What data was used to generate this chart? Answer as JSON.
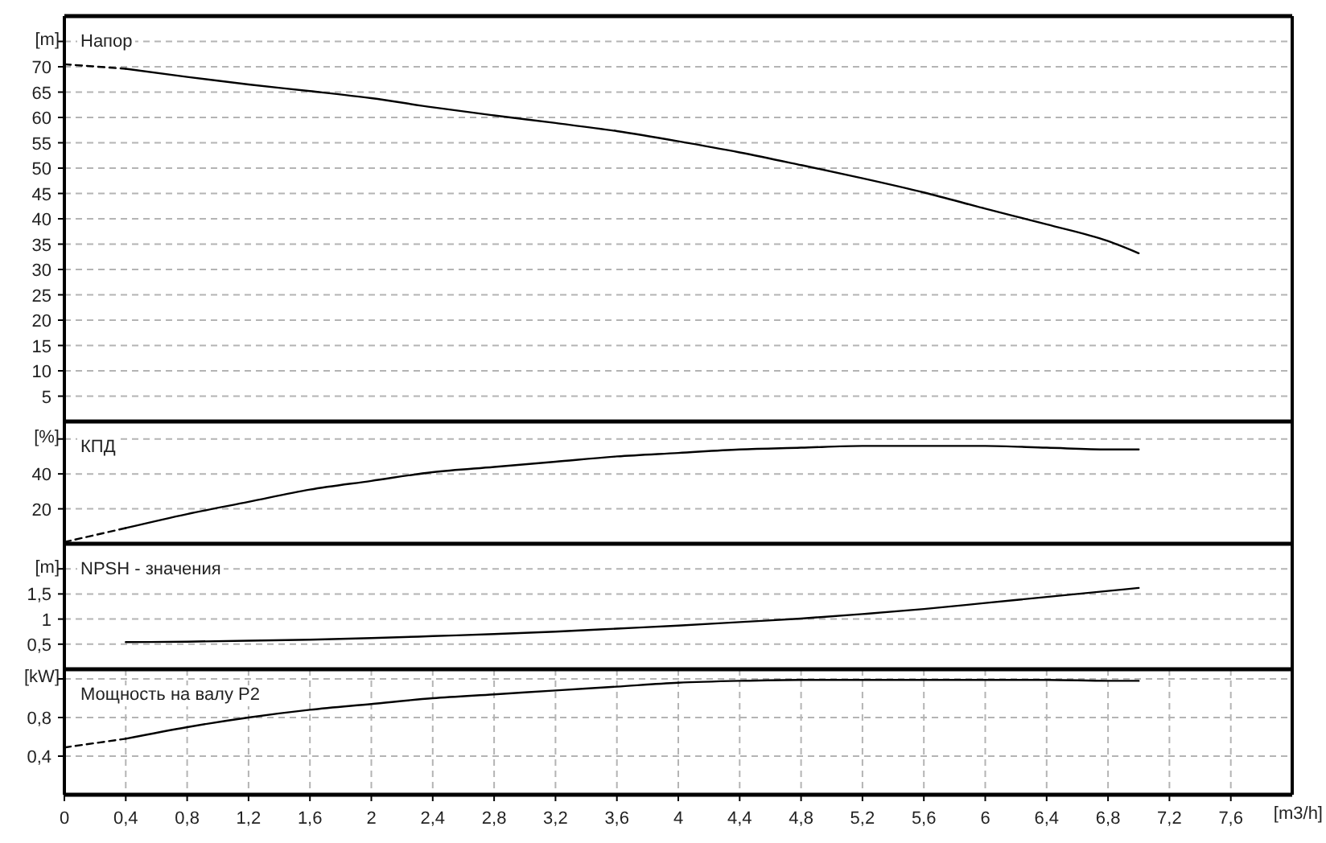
{
  "chart_data": [
    {
      "type": "line",
      "title": "Напор",
      "ylabel": "[m]",
      "xlim": [
        0,
        8
      ],
      "xticks": [
        0,
        0.4,
        0.8,
        1.2,
        1.6,
        2,
        2.4,
        2.8,
        3.2,
        3.6,
        4,
        4.4,
        4.8,
        5.2,
        5.6,
        6,
        6.4,
        6.8,
        7.2,
        7.6
      ],
      "ylim": [
        0,
        80
      ],
      "yticks": [
        5,
        10,
        15,
        20,
        25,
        30,
        35,
        40,
        45,
        50,
        55,
        60,
        65,
        70,
        {
          "value": 75,
          "label": null
        }
      ],
      "grid": true,
      "tick_labels": "y",
      "marker": "none",
      "line_style": "solid",
      "series": [
        {
          "color": "#000000",
          "x": [
            0.4,
            0.8,
            1.2,
            1.6,
            2.0,
            2.4,
            2.8,
            3.2,
            3.6,
            4.0,
            4.4,
            4.8,
            5.2,
            5.6,
            6.0,
            6.4,
            6.8,
            7.0
          ],
          "values": [
            69.6,
            68.0,
            66.5,
            65.2,
            63.8,
            62.0,
            60.4,
            58.9,
            57.3,
            55.3,
            53.1,
            50.6,
            48.0,
            45.2,
            42.0,
            38.9,
            35.6,
            33.2
          ]
        },
        {
          "color": "#000000",
          "line_style": "dashed",
          "x": [
            0,
            0.4
          ],
          "values": [
            70.5,
            69.6
          ]
        }
      ]
    },
    {
      "type": "line",
      "title": "КПД",
      "ylabel": "[%]",
      "xlim": [
        0,
        8
      ],
      "xticks": [
        0,
        0.4,
        0.8,
        1.2,
        1.6,
        2,
        2.4,
        2.8,
        3.2,
        3.6,
        4,
        4.4,
        4.8,
        5.2,
        5.6,
        6,
        6.4,
        6.8,
        7.2,
        7.6
      ],
      "ylim": [
        0,
        70
      ],
      "yticks": [
        20,
        40,
        {
          "value": 60,
          "label": null
        }
      ],
      "grid": true,
      "tick_labels": "y",
      "marker": "none",
      "line_style": "solid",
      "series": [
        {
          "color": "#000000",
          "x": [
            0.4,
            0.8,
            1.2,
            1.6,
            2.0,
            2.4,
            2.8,
            3.2,
            3.6,
            4.0,
            4.4,
            4.8,
            5.2,
            5.6,
            6.0,
            6.4,
            6.8,
            7.0
          ],
          "values": [
            9,
            17,
            24,
            31,
            36,
            41,
            44,
            47,
            50,
            52,
            54,
            55,
            56,
            56,
            56,
            55,
            54,
            54
          ]
        },
        {
          "color": "#000000",
          "line_style": "dashed",
          "x": [
            0,
            0.4
          ],
          "values": [
            1,
            9
          ]
        }
      ]
    },
    {
      "type": "line",
      "title": "NPSH - значения",
      "ylabel": "[m]",
      "xlim": [
        0,
        8
      ],
      "xticks": [
        0,
        0.4,
        0.8,
        1.2,
        1.6,
        2,
        2.4,
        2.8,
        3.2,
        3.6,
        4,
        4.4,
        4.8,
        5.2,
        5.6,
        6,
        6.4,
        6.8,
        7.2,
        7.6
      ],
      "ylim": [
        0,
        2.5
      ],
      "yticks": [
        {
          "value": 0.5,
          "label": "0,5"
        },
        1,
        {
          "value": 1.5,
          "label": "1,5"
        },
        {
          "value": 2,
          "label": null
        }
      ],
      "grid": true,
      "tick_labels": "y",
      "marker": "none",
      "line_style": "solid",
      "series": [
        {
          "color": "#000000",
          "x": [
            0.4,
            0.8,
            1.2,
            1.6,
            2.0,
            2.4,
            2.8,
            3.2,
            3.6,
            4.0,
            4.4,
            4.8,
            5.2,
            5.6,
            6.0,
            6.4,
            6.8,
            7.0
          ],
          "values": [
            0.54,
            0.55,
            0.57,
            0.59,
            0.62,
            0.66,
            0.7,
            0.75,
            0.81,
            0.87,
            0.94,
            1.01,
            1.1,
            1.2,
            1.32,
            1.44,
            1.56,
            1.62
          ]
        }
      ]
    },
    {
      "type": "line",
      "title": "Мощность на валу P2",
      "ylabel": "[kW]",
      "xlabel": "[m3/h]",
      "xlim": [
        0,
        8
      ],
      "xticks": [
        0,
        {
          "value": 0.4,
          "label": "0,4"
        },
        {
          "value": 0.8,
          "label": "0,8"
        },
        {
          "value": 1.2,
          "label": "1,2"
        },
        {
          "value": 1.6,
          "label": "1,6"
        },
        2,
        {
          "value": 2.4,
          "label": "2,4"
        },
        {
          "value": 2.8,
          "label": "2,8"
        },
        {
          "value": 3.2,
          "label": "3,2"
        },
        {
          "value": 3.6,
          "label": "3,6"
        },
        4,
        {
          "value": 4.4,
          "label": "4,4"
        },
        {
          "value": 4.8,
          "label": "4,8"
        },
        {
          "value": 5.2,
          "label": "5,2"
        },
        {
          "value": 5.6,
          "label": "5,6"
        },
        6,
        {
          "value": 6.4,
          "label": "6,4"
        },
        {
          "value": 6.8,
          "label": "6,8"
        },
        {
          "value": 7.2,
          "label": "7,2"
        },
        {
          "value": 7.6,
          "label": "7,6"
        }
      ],
      "ylim": [
        0,
        1.3
      ],
      "yticks": [
        {
          "value": 0.4,
          "label": "0,4"
        },
        {
          "value": 0.8,
          "label": "0,8"
        },
        {
          "value": 1.2,
          "label": null
        }
      ],
      "grid": true,
      "marker": "none",
      "line_style": "solid",
      "series": [
        {
          "color": "#000000",
          "x": [
            0.4,
            0.8,
            1.2,
            1.6,
            2.0,
            2.4,
            2.8,
            3.2,
            3.6,
            4.0,
            4.4,
            4.8,
            5.2,
            5.6,
            6.0,
            6.4,
            6.8,
            7.0
          ],
          "values": [
            0.58,
            0.7,
            0.8,
            0.88,
            0.94,
            1.0,
            1.04,
            1.08,
            1.12,
            1.16,
            1.18,
            1.19,
            1.19,
            1.19,
            1.19,
            1.19,
            1.18,
            1.18
          ]
        },
        {
          "color": "#000000",
          "line_style": "dashed",
          "x": [
            0,
            0.4
          ],
          "values": [
            0.49,
            0.58
          ]
        }
      ]
    }
  ]
}
